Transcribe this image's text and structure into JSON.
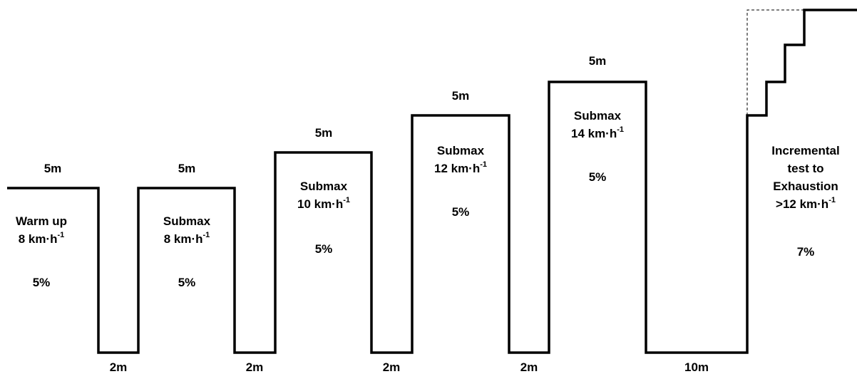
{
  "stages": [
    {
      "duration": "5m",
      "lines": [
        "Warm up",
        "8 km·h"
      ],
      "sup": "-1",
      "grade": "5%"
    },
    {
      "duration": "5m",
      "lines": [
        "Submax",
        "8 km·h"
      ],
      "sup": "-1",
      "grade": "5%"
    },
    {
      "duration": "5m",
      "lines": [
        "Submax",
        "10 km·h"
      ],
      "sup": "-1",
      "grade": "5%"
    },
    {
      "duration": "5m",
      "lines": [
        "Submax",
        "12 km·h"
      ],
      "sup": "-1",
      "grade": "5%"
    },
    {
      "duration": "5m",
      "lines": [
        "Submax",
        "14 km·h"
      ],
      "sup": "-1",
      "grade": "5%"
    },
    {
      "duration": "",
      "lines": [
        "Incremental",
        "test to",
        "Exhaustion",
        ">12 km·h"
      ],
      "sup": "-1",
      "grade": "7%"
    }
  ],
  "rests": [
    "2m",
    "2m",
    "2m",
    "2m",
    "10m"
  ]
}
